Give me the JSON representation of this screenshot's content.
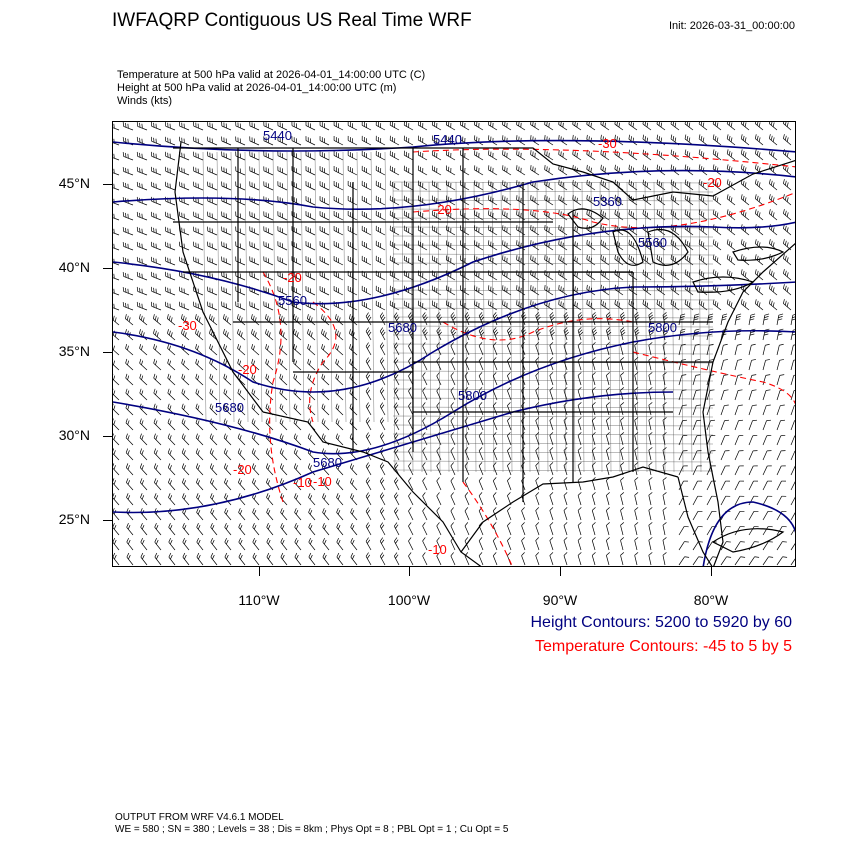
{
  "header": {
    "title": "IWFAQRP Contiguous US Real Time WRF",
    "init": "Init: 2026-03-31_00:00:00"
  },
  "fields": [
    "Temperature at 500 hPa valid at 2026-04-01_14:00:00 UTC   (C)",
    "Height at 500 hPa valid at 2026-04-01_14:00:00 UTC   (m)",
    "Winds   (kts)"
  ],
  "map": {
    "lat_labels": [
      "45°N",
      "40°N",
      "35°N",
      "30°N",
      "25°N"
    ],
    "lon_labels": [
      "110°W",
      "100°W",
      "90°W",
      "80°W"
    ],
    "height_contour_labels": [
      "5440",
      "5440",
      "5360",
      "5560",
      "5680",
      "5560",
      "5680",
      "5800",
      "5680",
      "5800"
    ],
    "temp_contour_labels": [
      "-30",
      "-20",
      "-20",
      "-20",
      "-30",
      "-20",
      "-20",
      "-10",
      "-10",
      "-10"
    ],
    "colors": {
      "height": "#000080",
      "temperature": "#ff0000",
      "boundaries": "#000000",
      "barbs": "#000000"
    }
  },
  "legend": {
    "height": "Height Contours: 5200 to 5920 by 60",
    "temperature": "Temperature Contours: -45 to 5 by 5"
  },
  "footer": {
    "line1": "OUTPUT FROM WRF V4.6.1 MODEL",
    "line2": "WE = 580 ; SN = 380 ; Levels = 38 ; Dis = 8km ; Phys Opt = 8 ; PBL Opt = 1 ; Cu Opt = 5"
  }
}
